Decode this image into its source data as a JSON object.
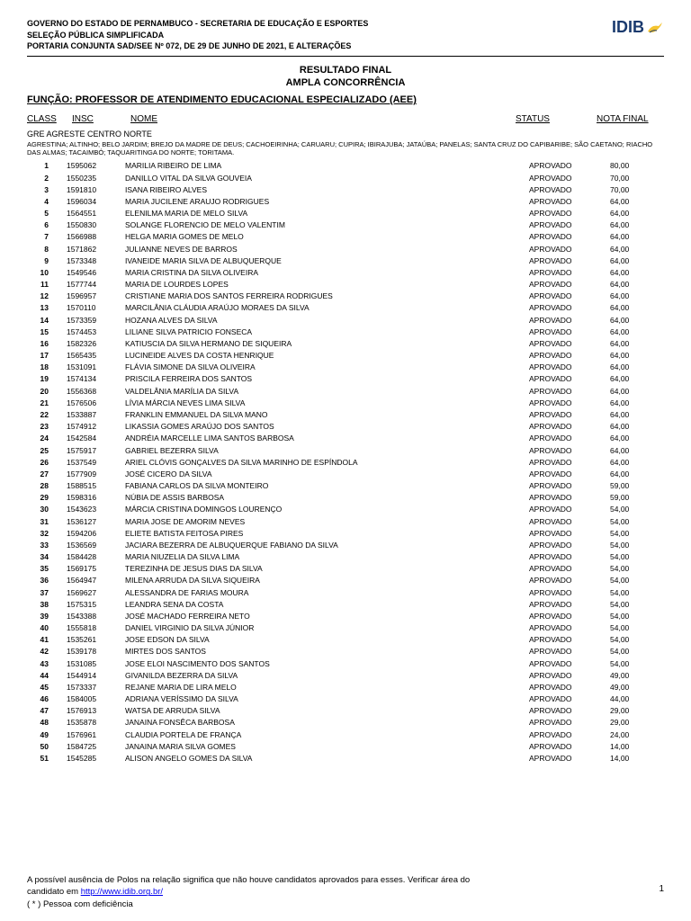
{
  "header": {
    "line1": "GOVERNO DO ESTADO DE PERNAMBUCO - SECRETARIA DE EDUCAÇÃO E ESPORTES",
    "line2": "SELEÇÃO PÚBLICA SIMPLIFICADA",
    "line3": "PORTARIA CONJUNTA SAD/SEE Nº 072, DE 29 DE JUNHO DE 2021, E ALTERAÇÕES",
    "logo_text": "IDIB"
  },
  "titles": {
    "t1": "RESULTADO FINAL",
    "t2": "AMPLA CONCORRÊNCIA"
  },
  "funcao": "FUNÇÃO: PROFESSOR DE ATENDIMENTO EDUCACIONAL ESPECIALIZADO (AEE)",
  "columns": {
    "class": "CLASS",
    "insc": "INSC",
    "nome": "NOME",
    "status": "STATUS",
    "nota": "NOTA FINAL"
  },
  "region": "GRE AGRESTE CENTRO NORTE",
  "region_sub": "AGRESTINA; ALTINHO; BELO JARDIM; BREJO DA MADRE DE DEUS; CACHOEIRINHA; CARUARU; CUPIRA; IBIRAJUBA; JATAÚBA; PANELAS; SANTA CRUZ DO CAPIBARIBE; SÃO CAETANO; RIACHO DAS ALMAS; TACAIMBÓ; TAQUARITINGA DO NORTE; TORITAMA.",
  "rows": [
    {
      "n": "1",
      "insc": "1595062",
      "nome": "MARILIA RIBEIRO DE LIMA",
      "status": "APROVADO",
      "nota": "80,00"
    },
    {
      "n": "2",
      "insc": "1550235",
      "nome": "DANILLO VITAL DA SILVA GOUVEIA",
      "status": "APROVADO",
      "nota": "70,00"
    },
    {
      "n": "3",
      "insc": "1591810",
      "nome": "ISANA RIBEIRO ALVES",
      "status": "APROVADO",
      "nota": "70,00"
    },
    {
      "n": "4",
      "insc": "1596034",
      "nome": "MARIA JUCILENE ARAUJO RODRIGUES",
      "status": "APROVADO",
      "nota": "64,00"
    },
    {
      "n": "5",
      "insc": "1564551",
      "nome": "ELENILMA MARIA DE MELO SILVA",
      "status": "APROVADO",
      "nota": "64,00"
    },
    {
      "n": "6",
      "insc": "1550830",
      "nome": "SOLANGE FLORENCIO DE MELO VALENTIM",
      "status": "APROVADO",
      "nota": "64,00"
    },
    {
      "n": "7",
      "insc": "1566988",
      "nome": "HELGA MARIA GOMES DE MELO",
      "status": "APROVADO",
      "nota": "64,00"
    },
    {
      "n": "8",
      "insc": "1571862",
      "nome": "JULIANNE NEVES DE BARROS",
      "status": "APROVADO",
      "nota": "64,00"
    },
    {
      "n": "9",
      "insc": "1573348",
      "nome": "IVANEIDE MARIA SILVA DE ALBUQUERQUE",
      "status": "APROVADO",
      "nota": "64,00"
    },
    {
      "n": "10",
      "insc": "1549546",
      "nome": "MARIA CRISTINA DA SILVA OLIVEIRA",
      "status": "APROVADO",
      "nota": "64,00"
    },
    {
      "n": "11",
      "insc": "1577744",
      "nome": "MARIA DE LOURDES LOPES",
      "status": "APROVADO",
      "nota": "64,00"
    },
    {
      "n": "12",
      "insc": "1596957",
      "nome": "CRISTIANE MARIA DOS SANTOS FERREIRA RODRIGUES",
      "status": "APROVADO",
      "nota": "64,00"
    },
    {
      "n": "13",
      "insc": "1570110",
      "nome": "MARCILÂNIA CLÁUDIA ARAÚJO MORAES DA SILVA",
      "status": "APROVADO",
      "nota": "64,00"
    },
    {
      "n": "14",
      "insc": "1573359",
      "nome": "HOZANA ALVES DA SILVA",
      "status": "APROVADO",
      "nota": "64,00"
    },
    {
      "n": "15",
      "insc": "1574453",
      "nome": "LILIANE SILVA PATRICIO FONSECA",
      "status": "APROVADO",
      "nota": "64,00"
    },
    {
      "n": "16",
      "insc": "1582326",
      "nome": "KATIUSCIA DA SILVA HERMANO DE SIQUEIRA",
      "status": "APROVADO",
      "nota": "64,00"
    },
    {
      "n": "17",
      "insc": "1565435",
      "nome": "LUCINEIDE ALVES DA COSTA HENRIQUE",
      "status": "APROVADO",
      "nota": "64,00"
    },
    {
      "n": "18",
      "insc": "1531091",
      "nome": "FLÁVIA SIMONE DA SILVA OLIVEIRA",
      "status": "APROVADO",
      "nota": "64,00"
    },
    {
      "n": "19",
      "insc": "1574134",
      "nome": "PRISCILA FERREIRA DOS SANTOS",
      "status": "APROVADO",
      "nota": "64,00"
    },
    {
      "n": "20",
      "insc": "1556368",
      "nome": "VALDELÂNIA MARÍLIA DA SILVA",
      "status": "APROVADO",
      "nota": "64,00"
    },
    {
      "n": "21",
      "insc": "1576506",
      "nome": "LÍVIA MÁRCIA NEVES LIMA SILVA",
      "status": "APROVADO",
      "nota": "64,00"
    },
    {
      "n": "22",
      "insc": "1533887",
      "nome": "FRANKLIN EMMANUEL DA SILVA MANO",
      "status": "APROVADO",
      "nota": "64,00"
    },
    {
      "n": "23",
      "insc": "1574912",
      "nome": "LIKASSIA GOMES ARAÚJO DOS SANTOS",
      "status": "APROVADO",
      "nota": "64,00"
    },
    {
      "n": "24",
      "insc": "1542584",
      "nome": "ANDRÉIA MARCELLE LIMA SANTOS BARBOSA",
      "status": "APROVADO",
      "nota": "64,00"
    },
    {
      "n": "25",
      "insc": "1575917",
      "nome": "GABRIEL BEZERRA SILVA",
      "status": "APROVADO",
      "nota": "64,00"
    },
    {
      "n": "26",
      "insc": "1537549",
      "nome": "ARIEL CLÓVIS GONÇALVES DA SILVA MARINHO DE ESPÍNDOLA",
      "status": "APROVADO",
      "nota": "64,00"
    },
    {
      "n": "27",
      "insc": "1577909",
      "nome": "JOSÉ CICERO DA SILVA",
      "status": "APROVADO",
      "nota": "64,00"
    },
    {
      "n": "28",
      "insc": "1588515",
      "nome": "FABIANA CARLOS DA SILVA MONTEIRO",
      "status": "APROVADO",
      "nota": "59,00"
    },
    {
      "n": "29",
      "insc": "1598316",
      "nome": "NÚBIA DE ASSIS BARBOSA",
      "status": "APROVADO",
      "nota": "59,00"
    },
    {
      "n": "30",
      "insc": "1543623",
      "nome": "MÁRCIA CRISTINA DOMINGOS LOURENÇO",
      "status": "APROVADO",
      "nota": "54,00"
    },
    {
      "n": "31",
      "insc": "1536127",
      "nome": "MARIA JOSE DE AMORIM NEVES",
      "status": "APROVADO",
      "nota": "54,00"
    },
    {
      "n": "32",
      "insc": "1594206",
      "nome": "ELIETE BATISTA FEITOSA PIRES",
      "status": "APROVADO",
      "nota": "54,00"
    },
    {
      "n": "33",
      "insc": "1536569",
      "nome": "JACIARA BEZERRA DE ALBUQUERQUE FABIANO DA SILVA",
      "status": "APROVADO",
      "nota": "54,00"
    },
    {
      "n": "34",
      "insc": "1584428",
      "nome": "MARIA NIUZELIA DA SILVA LIMA",
      "status": "APROVADO",
      "nota": "54,00"
    },
    {
      "n": "35",
      "insc": "1569175",
      "nome": "TEREZINHA DE JESUS DIAS DA SILVA",
      "status": "APROVADO",
      "nota": "54,00"
    },
    {
      "n": "36",
      "insc": "1564947",
      "nome": "MILENA ARRUDA DA SILVA SIQUEIRA",
      "status": "APROVADO",
      "nota": "54,00"
    },
    {
      "n": "37",
      "insc": "1569627",
      "nome": "ALESSANDRA DE FARIAS MOURA",
      "status": "APROVADO",
      "nota": "54,00"
    },
    {
      "n": "38",
      "insc": "1575315",
      "nome": "LEANDRA SENA DA COSTA",
      "status": "APROVADO",
      "nota": "54,00"
    },
    {
      "n": "39",
      "insc": "1543388",
      "nome": "JOSÉ MACHADO FERREIRA NETO",
      "status": "APROVADO",
      "nota": "54,00"
    },
    {
      "n": "40",
      "insc": "1555818",
      "nome": "DANIEL VIRGINIO DA SILVA JÚNIOR",
      "status": "APROVADO",
      "nota": "54,00"
    },
    {
      "n": "41",
      "insc": "1535261",
      "nome": "JOSE EDSON DA SILVA",
      "status": "APROVADO",
      "nota": "54,00"
    },
    {
      "n": "42",
      "insc": "1539178",
      "nome": "MIRTES DOS SANTOS",
      "status": "APROVADO",
      "nota": "54,00"
    },
    {
      "n": "43",
      "insc": "1531085",
      "nome": "JOSE ELOI NASCIMENTO DOS SANTOS",
      "status": "APROVADO",
      "nota": "54,00"
    },
    {
      "n": "44",
      "insc": "1544914",
      "nome": "GIVANILDA BEZERRA DA SILVA",
      "status": "APROVADO",
      "nota": "49,00"
    },
    {
      "n": "45",
      "insc": "1573337",
      "nome": "REJANE MARIA DE LIRA MELO",
      "status": "APROVADO",
      "nota": "49,00"
    },
    {
      "n": "46",
      "insc": "1584005",
      "nome": "ADRIANA VERÍSSIMO DA SILVA",
      "status": "APROVADO",
      "nota": "44,00"
    },
    {
      "n": "47",
      "insc": "1576913",
      "nome": "WATSA DE ARRUDA SILVA",
      "status": "APROVADO",
      "nota": "29,00"
    },
    {
      "n": "48",
      "insc": "1535878",
      "nome": "JANAINA FONSÊCA BARBOSA",
      "status": "APROVADO",
      "nota": "29,00"
    },
    {
      "n": "49",
      "insc": "1576961",
      "nome": "CLAUDIA PORTELA DE FRANÇA",
      "status": "APROVADO",
      "nota": "24,00"
    },
    {
      "n": "50",
      "insc": "1584725",
      "nome": "JANAINA MARIA SILVA GOMES",
      "status": "APROVADO",
      "nota": "14,00"
    },
    {
      "n": "51",
      "insc": "1545285",
      "nome": "ALISON ANGELO GOMES DA SILVA",
      "status": "APROVADO",
      "nota": "14,00"
    }
  ],
  "footer": {
    "line1_a": "A possível ausência de Polos na relação significa que não houve candidatos aprovados para esses. Verificar área do",
    "line1_b": "candidato em ",
    "link": "http://www.idib.org.br/",
    "line2": "( * ) Pessoa com deficiência"
  },
  "page_num": "1"
}
